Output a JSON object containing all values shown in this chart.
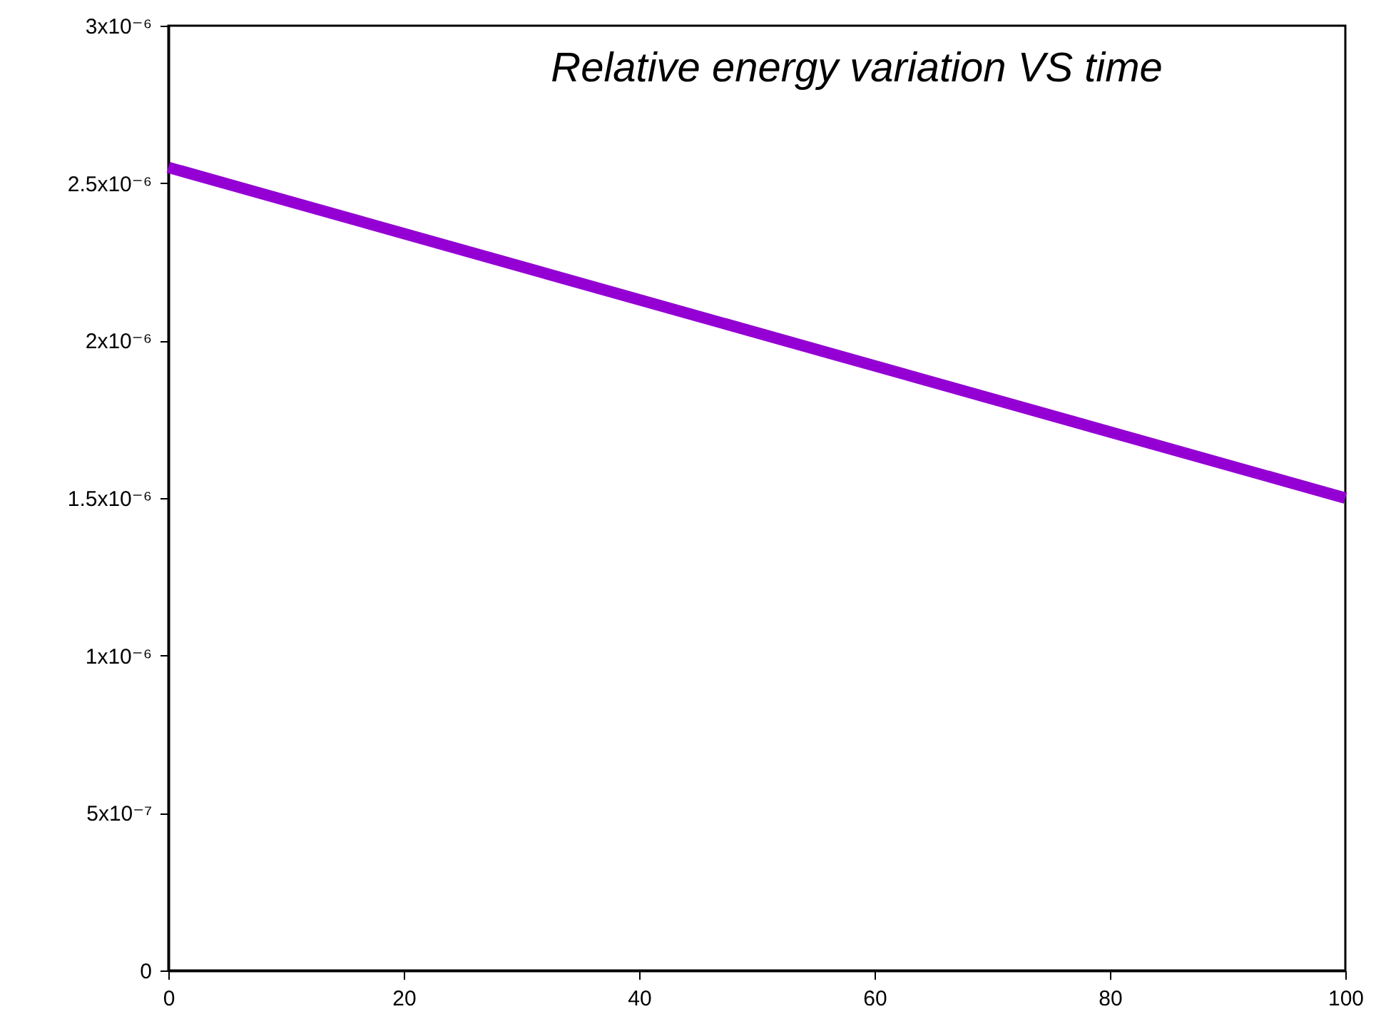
{
  "chart_data": {
    "type": "line",
    "title": "Relative energy variation VS time",
    "x": [
      0,
      100
    ],
    "xlim": [
      0,
      100
    ],
    "xticks": [
      0,
      20,
      40,
      60,
      80,
      100
    ],
    "ylim": [
      0,
      3e-06
    ],
    "yticks": [
      {
        "value": 0,
        "label": "0"
      },
      {
        "value": 5e-07,
        "label": "5x10⁻⁷"
      },
      {
        "value": 1e-06,
        "label": "1x10⁻⁶"
      },
      {
        "value": 1.5e-06,
        "label": "1.5x10⁻⁶"
      },
      {
        "value": 2e-06,
        "label": "2x10⁻⁶"
      },
      {
        "value": 2.5e-06,
        "label": "2.5x10⁻⁶"
      },
      {
        "value": 3e-06,
        "label": "3x10⁻⁶"
      }
    ],
    "series": [
      {
        "color": "#9400d3",
        "values": [
          2.55e-06,
          1.5e-06
        ]
      }
    ],
    "grid": false
  }
}
